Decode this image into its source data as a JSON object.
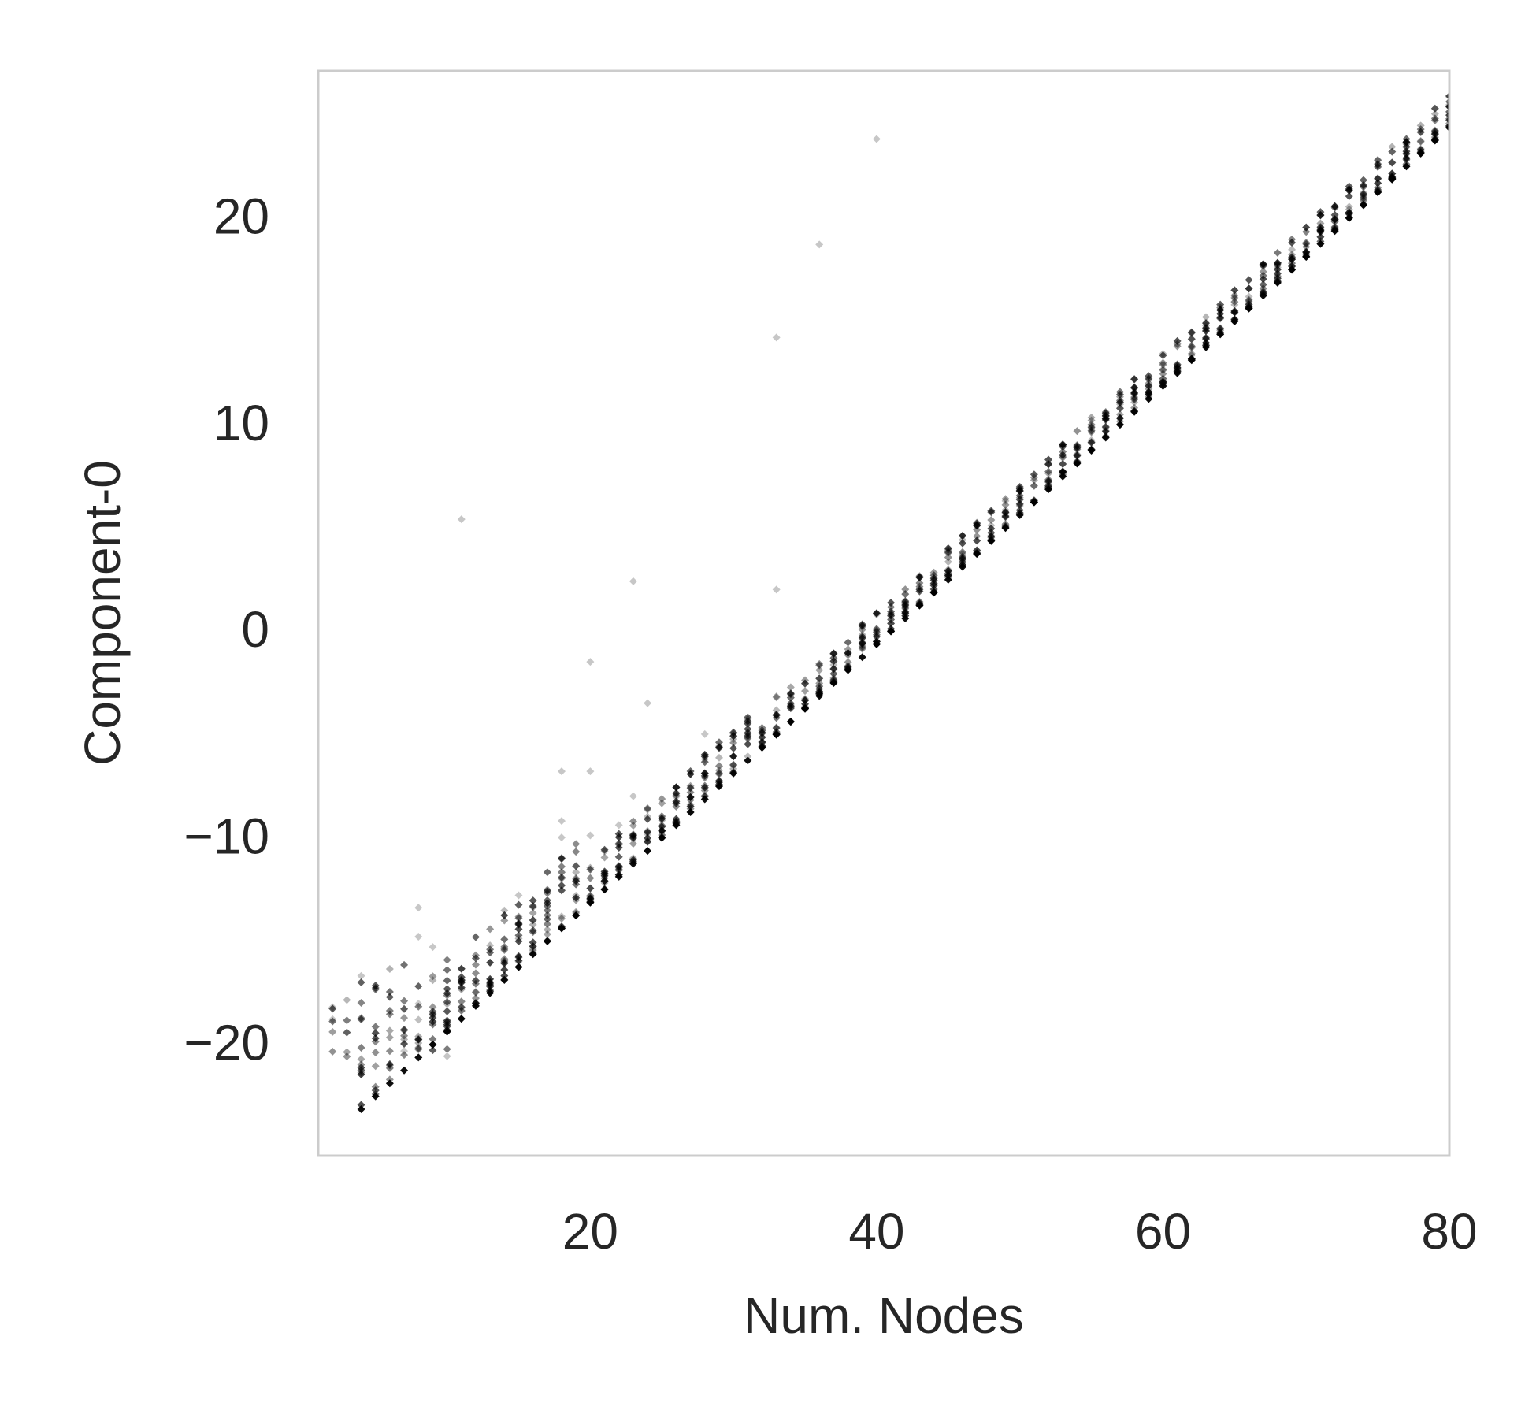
{
  "chart_data": {
    "type": "scatter",
    "title": "",
    "xlabel": "Num. Nodes",
    "ylabel": "Component-0",
    "xlim": [
      1,
      80
    ],
    "ylim": [
      -25.5,
      27
    ],
    "xticks": [
      20,
      40,
      60,
      80
    ],
    "xtick_labels": [
      "20",
      "40",
      "60",
      "80"
    ],
    "yticks": [
      -20,
      -10,
      0,
      10,
      20
    ],
    "ytick_labels": [
      "−20",
      "−10",
      "0",
      "10",
      "20"
    ],
    "grid": false,
    "legend": "none",
    "marker": "diamond",
    "marker_color": "#000000",
    "frame_color": "#cccccc",
    "text_color": "#262626",
    "trend": {
      "slope": 0.625,
      "intercept": -25.75,
      "x_range": [
        4,
        80
      ]
    },
    "outliers": [
      [
        11,
        5.3
      ],
      [
        23,
        2.3
      ],
      [
        20,
        -1.6
      ],
      [
        24,
        -3.6
      ],
      [
        28,
        -5.1
      ],
      [
        33,
        1.9
      ],
      [
        33,
        14.1
      ],
      [
        36,
        18.6
      ],
      [
        40,
        23.7
      ],
      [
        18,
        -6.9
      ],
      [
        20,
        -6.9
      ],
      [
        18,
        -9.3
      ],
      [
        18,
        -10.1
      ],
      [
        20,
        -10.0
      ],
      [
        22,
        -9.5
      ],
      [
        23,
        -8.1
      ],
      [
        15,
        -12.9
      ],
      [
        8,
        -13.5
      ],
      [
        8,
        -14.9
      ],
      [
        4,
        -16.8
      ],
      [
        2,
        -18.9
      ],
      [
        9,
        -15.4
      ]
    ]
  }
}
